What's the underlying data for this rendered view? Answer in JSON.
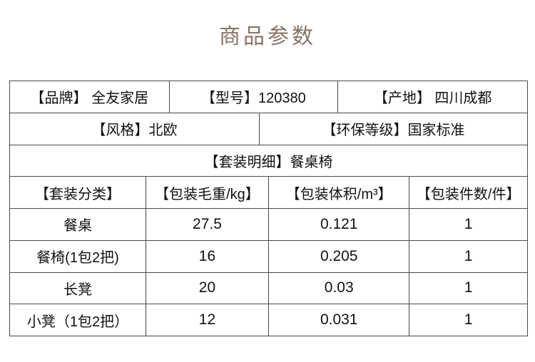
{
  "title": "商品参数",
  "colors": {
    "title_text": "#8a7265",
    "table_border": "#4a4a4a",
    "body_text": "#111111",
    "background": "#ffffff"
  },
  "info": {
    "brand": "【品牌】 全友家居",
    "model": "【型号】120380",
    "origin": "【产地】 四川成都",
    "style": "【风格】北欧",
    "eco_grade": "【环保等级】国家标准",
    "set_detail": "【套装明细】餐桌椅"
  },
  "spec": {
    "headers": [
      "【套装分类】",
      "【包装毛重/kg】",
      "【包装体积/m³】",
      "【包装件数/件】"
    ],
    "rows": [
      [
        "餐桌",
        "27.5",
        "0.121",
        "1"
      ],
      [
        "餐椅(1包2把)",
        "16",
        "0.205",
        "1"
      ],
      [
        "长凳",
        "20",
        "0.03",
        "1"
      ],
      [
        "小凳（1包2把）",
        "12",
        "0.031",
        "1"
      ]
    ]
  }
}
